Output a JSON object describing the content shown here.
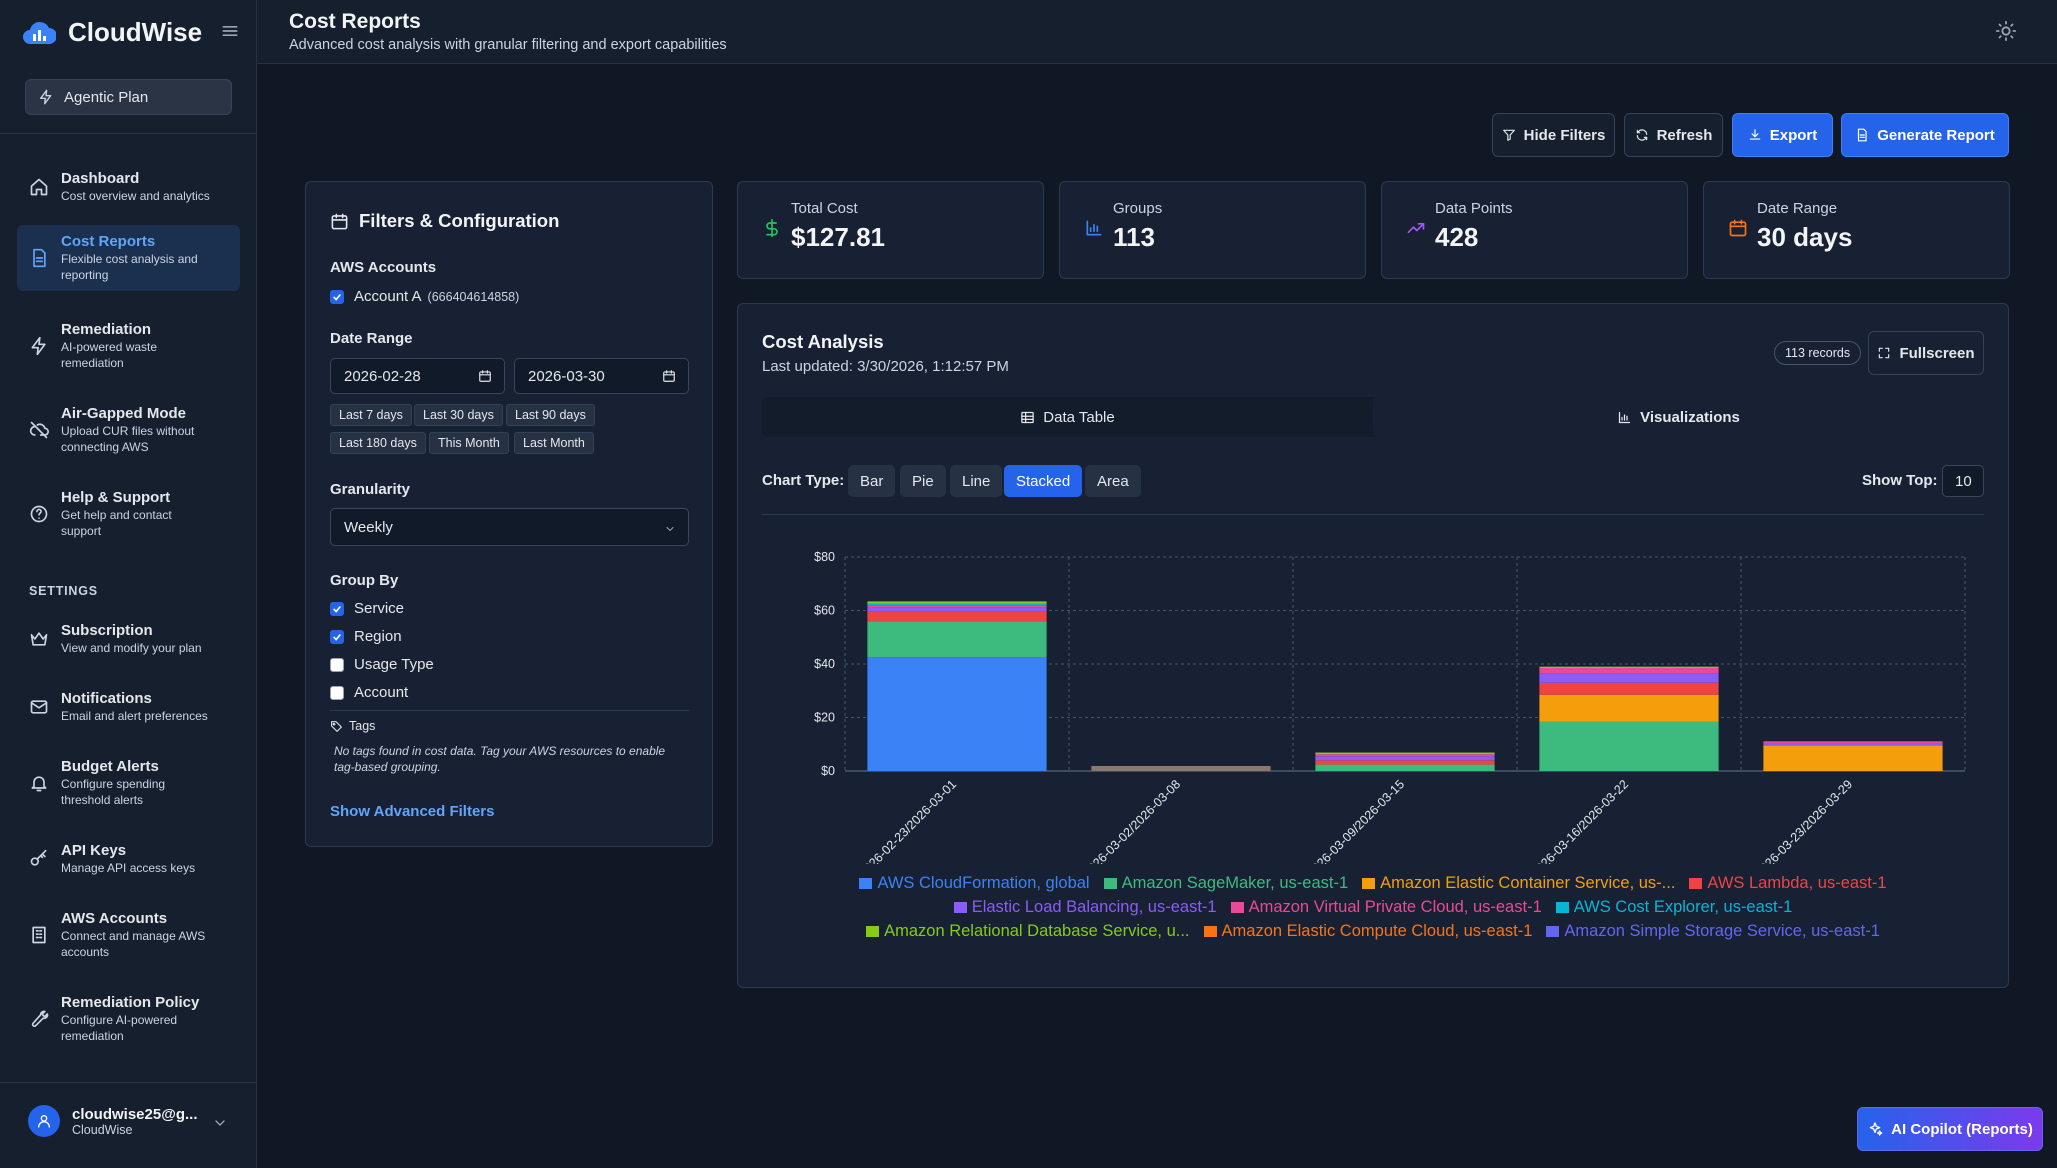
{
  "app": {
    "name": "CloudWise"
  },
  "plan": {
    "label": "Agentic Plan"
  },
  "sidebar": {
    "items": [
      {
        "title": "Dashboard",
        "sub": "Cost overview and analytics"
      },
      {
        "title": "Cost Reports",
        "sub": "Flexible cost analysis and reporting"
      },
      {
        "title": "Remediation",
        "sub": "AI-powered waste remediation"
      },
      {
        "title": "Air-Gapped Mode",
        "sub": "Upload CUR files without connecting AWS"
      },
      {
        "title": "Help & Support",
        "sub": "Get help and contact support"
      }
    ],
    "settings_heading": "SETTINGS",
    "settings": [
      {
        "title": "Subscription",
        "sub": "View and modify your plan"
      },
      {
        "title": "Notifications",
        "sub": "Email and alert preferences"
      },
      {
        "title": "Budget Alerts",
        "sub": "Configure spending threshold alerts"
      },
      {
        "title": "API Keys",
        "sub": "Manage API access keys"
      },
      {
        "title": "AWS Accounts",
        "sub": "Connect and manage AWS accounts"
      },
      {
        "title": "Remediation Policy",
        "sub": "Configure AI-powered remediation"
      }
    ]
  },
  "user": {
    "email": "cloudwise25@g...",
    "org": "CloudWise"
  },
  "header": {
    "title": "Cost Reports",
    "subtitle": "Advanced cost analysis with granular filtering and export capabilities"
  },
  "toolbar": {
    "hide_filters": "Hide Filters",
    "refresh": "Refresh",
    "export": "Export",
    "generate": "Generate Report"
  },
  "filters": {
    "title": "Filters & Configuration",
    "accounts_label": "AWS Accounts",
    "account_name": "Account A",
    "account_id": "(666404614858)",
    "date_range_label": "Date Range",
    "date_start": "2026-02-28",
    "date_end": "2026-03-30",
    "presets": [
      "Last 7 days",
      "Last 30 days",
      "Last 90 days",
      "Last 180 days",
      "This Month",
      "Last Month"
    ],
    "granularity_label": "Granularity",
    "granularity_value": "Weekly",
    "group_by_label": "Group By",
    "group_by": [
      {
        "label": "Service",
        "checked": true
      },
      {
        "label": "Region",
        "checked": true
      },
      {
        "label": "Usage Type",
        "checked": false
      },
      {
        "label": "Account",
        "checked": false
      }
    ],
    "tags_label": "Tags",
    "tags_note": "No tags found in cost data. Tag your AWS resources to enable tag-based grouping.",
    "advanced_link": "Show Advanced Filters"
  },
  "stats": [
    {
      "label": "Total Cost",
      "value": "$127.81",
      "icon": "dollar-icon",
      "color": "#22c55e"
    },
    {
      "label": "Groups",
      "value": "113",
      "icon": "bar-chart-icon",
      "color": "#3b82f6"
    },
    {
      "label": "Data Points",
      "value": "428",
      "icon": "trend-up-icon",
      "color": "#a855f7"
    },
    {
      "label": "Date Range",
      "value": "30 days",
      "icon": "calendar-icon",
      "color": "#f97316"
    }
  ],
  "analysis": {
    "title": "Cost Analysis",
    "updated": "Last updated: 3/30/2026, 1:12:57 PM",
    "records": "113 records",
    "fullscreen": "Fullscreen",
    "tabs": [
      "Data Table",
      "Visualizations"
    ],
    "chart_type_label": "Chart Type:",
    "chart_types": [
      "Bar",
      "Pie",
      "Line",
      "Stacked",
      "Area"
    ],
    "chart_type_selected": "Stacked",
    "show_top_label": "Show Top:",
    "show_top_value": "10"
  },
  "copilot": {
    "label": "AI Copilot (Reports)"
  },
  "chart_data": {
    "type": "bar",
    "stacked": true,
    "categories": [
      "2026-02-23/2026-03-01",
      "2026-03-02/2026-03-08",
      "2026-03-09/2026-03-15",
      "2026-03-16/2026-03-22",
      "2026-03-23/2026-03-29"
    ],
    "ylim": [
      0,
      80
    ],
    "yticks": [
      "$0",
      "$20",
      "$40",
      "$60",
      "$80"
    ],
    "grid": true,
    "legend_position": "bottom",
    "series": [
      {
        "name": "AWS CloudFormation, global",
        "color": "#3b82f6",
        "values": [
          42.5,
          0,
          0,
          0,
          0
        ]
      },
      {
        "name": "Amazon SageMaker, us-east-1",
        "color": "#3dbb7f",
        "values": [
          13.5,
          0,
          2.4,
          18.5,
          0
        ]
      },
      {
        "name": "Amazon Elastic Container Service, us-...",
        "color": "#f59e0b",
        "values": [
          0,
          0,
          0,
          10,
          9.5
        ]
      },
      {
        "name": "AWS Lambda, us-east-1",
        "color": "#ef4444",
        "values": [
          3.5,
          0,
          1.6,
          4.5,
          0
        ]
      },
      {
        "name": "Elastic Load Balancing, us-east-1",
        "color": "#8b5cf6",
        "values": [
          1.5,
          0,
          1.5,
          3.5,
          0.8
        ]
      },
      {
        "name": "Amazon Virtual Private Cloud, us-east-1",
        "color": "#ec4899",
        "values": [
          1,
          0,
          0.8,
          2,
          0.8
        ]
      },
      {
        "name": "AWS Cost Explorer, us-east-1",
        "color": "#06b6d4",
        "values": [
          0.6,
          0,
          0,
          0,
          0
        ]
      },
      {
        "name": "Amazon Relational Database Service, u...",
        "color": "#84cc16",
        "values": [
          0.8,
          0,
          0.6,
          0.5,
          0
        ]
      },
      {
        "name": "Amazon Elastic Compute Cloud, us-east-1",
        "color": "#f97316",
        "values": [
          0,
          0,
          0,
          0,
          0
        ]
      },
      {
        "name": "Amazon Simple Storage Service, us-east-1",
        "color": "#6366f1",
        "values": [
          0,
          0,
          0,
          0,
          0
        ]
      }
    ]
  }
}
